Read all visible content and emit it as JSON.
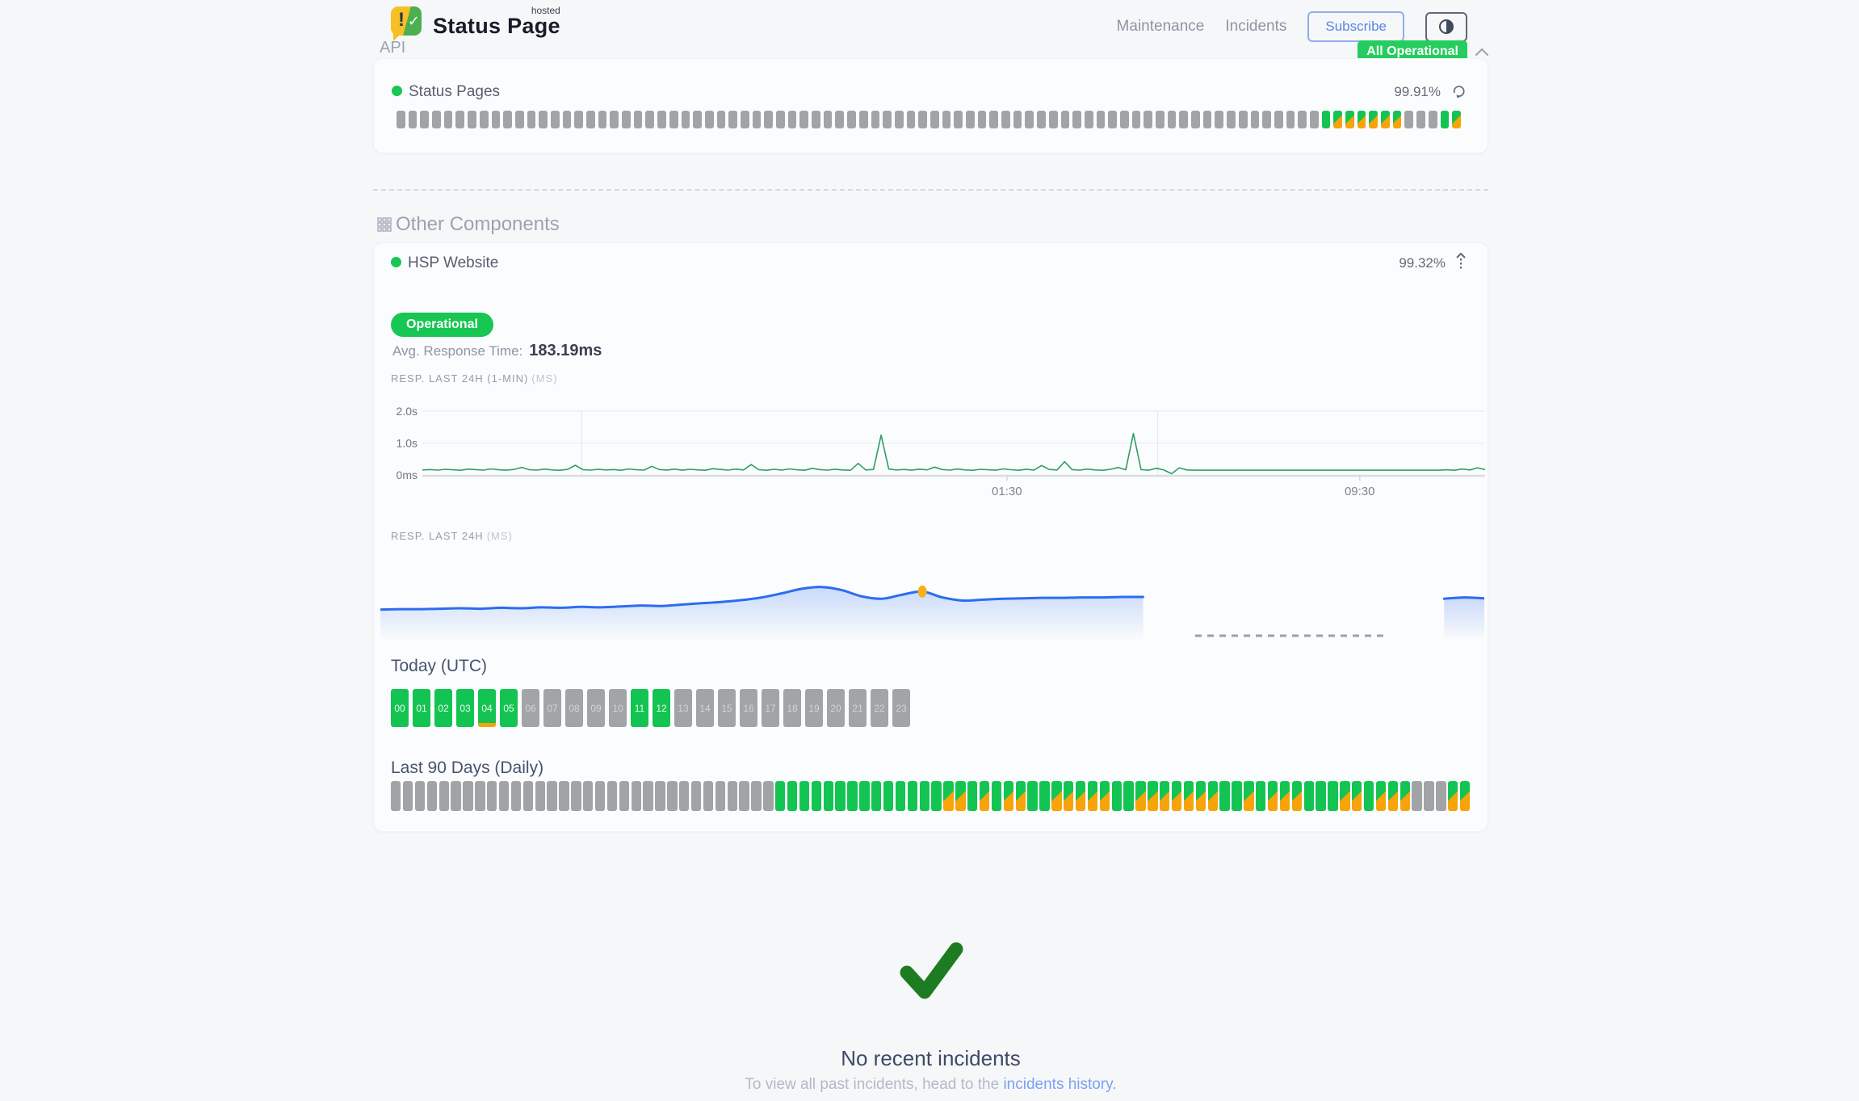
{
  "header": {
    "brand": {
      "title": "Status Page",
      "superscript": "hosted"
    },
    "nav": [
      "Maintenance",
      "Incidents"
    ],
    "subscribe_label": "Subscribe"
  },
  "api_section": {
    "title": "API",
    "status_badge": "All Operational",
    "component": {
      "name": "Status Pages",
      "uptime": "99.91%"
    },
    "uptime_bars_rle": [
      {
        "c": "gray",
        "n": 78
      },
      {
        "c": "green",
        "n": 1
      },
      {
        "c": "split",
        "n": 6
      },
      {
        "c": "gray",
        "n": 3
      },
      {
        "c": "green",
        "n": 1
      },
      {
        "c": "split",
        "n": 1
      }
    ]
  },
  "other_section": {
    "title": "Other Components",
    "component": {
      "name": "HSP Website",
      "uptime": "99.32%",
      "status": "Operational",
      "avg_label": "Avg. Response Time:",
      "avg_value": "183.19ms",
      "chart1_label": "RESP. LAST 24H (1-MIN)",
      "chart1_unit": "(MS)",
      "chart2_label": "RESP. LAST 24H",
      "chart2_unit": "(MS)",
      "today_title": "Today (UTC)",
      "hours": [
        {
          "label": "00",
          "state": "up"
        },
        {
          "label": "01",
          "state": "up"
        },
        {
          "label": "02",
          "state": "up"
        },
        {
          "label": "03",
          "state": "up"
        },
        {
          "label": "04",
          "state": "up",
          "partial": true
        },
        {
          "label": "05",
          "state": "up"
        },
        {
          "label": "06",
          "state": "empty"
        },
        {
          "label": "07",
          "state": "empty"
        },
        {
          "label": "08",
          "state": "empty"
        },
        {
          "label": "09",
          "state": "empty"
        },
        {
          "label": "10",
          "state": "empty"
        },
        {
          "label": "11",
          "state": "up"
        },
        {
          "label": "12",
          "state": "up"
        },
        {
          "label": "13",
          "state": "empty"
        },
        {
          "label": "14",
          "state": "empty"
        },
        {
          "label": "15",
          "state": "empty"
        },
        {
          "label": "16",
          "state": "empty"
        },
        {
          "label": "17",
          "state": "empty"
        },
        {
          "label": "18",
          "state": "empty"
        },
        {
          "label": "19",
          "state": "empty"
        },
        {
          "label": "20",
          "state": "empty"
        },
        {
          "label": "21",
          "state": "empty"
        },
        {
          "label": "22",
          "state": "empty"
        },
        {
          "label": "23",
          "state": "empty"
        }
      ],
      "last90_title": "Last 90 Days (Daily)",
      "daily_blocks_rle": [
        {
          "c": "gray",
          "n": 32
        },
        {
          "c": "green",
          "n": 14
        },
        {
          "c": "split",
          "n": 2
        },
        {
          "c": "green",
          "n": 1
        },
        {
          "c": "split",
          "n": 1
        },
        {
          "c": "green",
          "n": 1
        },
        {
          "c": "split",
          "n": 2
        },
        {
          "c": "green",
          "n": 2
        },
        {
          "c": "split",
          "n": 5
        },
        {
          "c": "green",
          "n": 2
        },
        {
          "c": "split",
          "n": 7
        },
        {
          "c": "green",
          "n": 2
        },
        {
          "c": "split",
          "n": 1
        },
        {
          "c": "green",
          "n": 1
        },
        {
          "c": "split",
          "n": 3
        },
        {
          "c": "green",
          "n": 3
        },
        {
          "c": "split",
          "n": 2
        },
        {
          "c": "green",
          "n": 1
        },
        {
          "c": "split",
          "n": 3
        },
        {
          "c": "gray",
          "n": 3
        },
        {
          "c": "split",
          "n": 2
        }
      ]
    }
  },
  "chart_data": [
    {
      "id": "resp_1min",
      "type": "line",
      "title": "RESP. LAST 24H (1-MIN)",
      "unit": "MS",
      "line_color": "#2f9e62",
      "ylim_ms": [
        0,
        2000
      ],
      "y_ticks": [
        {
          "label": "2.0s",
          "value": 2000
        },
        {
          "label": "1.0s",
          "value": 1000
        },
        {
          "label": "0ms",
          "value": 0
        }
      ],
      "x_ticks": [
        {
          "label": "01:30",
          "t": 0.55
        },
        {
          "label": "09:30",
          "t": 0.882
        }
      ],
      "v_gridlines_t": [
        0.15,
        0.692
      ],
      "values_ms": [
        158,
        170,
        151,
        176,
        162,
        148,
        185,
        168,
        153,
        190,
        161,
        149,
        175,
        238,
        164,
        152,
        186,
        157,
        147,
        174,
        305,
        167,
        151,
        181,
        158,
        169,
        148,
        191,
        163,
        152,
        272,
        169,
        155,
        182,
        149,
        176,
        160,
        146,
        198,
        171,
        153,
        185,
        157,
        326,
        164,
        148,
        178,
        155,
        189,
        161,
        147,
        207,
        167,
        152,
        181,
        157,
        146,
        362,
        158,
        172,
        1248,
        188,
        156,
        171,
        149,
        183,
        159,
        246,
        170,
        152,
        187,
        156,
        146,
        177,
        162,
        150,
        191,
        165,
        148,
        180,
        154,
        296,
        172,
        157,
        414,
        167,
        151,
        185,
        158,
        146,
        176,
        236,
        161,
        1302,
        168,
        150,
        210,
        155,
        38,
        225,
        158,
        150,
        150,
        150,
        150,
        150,
        150,
        150,
        150,
        150,
        150,
        150,
        150,
        150,
        150,
        150,
        150,
        150,
        150,
        150,
        150,
        150,
        150,
        150,
        150,
        150,
        150,
        150,
        150,
        150,
        150,
        150,
        150,
        150,
        163,
        147,
        188,
        157,
        225,
        170
      ]
    },
    {
      "id": "resp_24h",
      "type": "area",
      "title": "RESP. LAST 24H",
      "unit": "MS",
      "line_color": "#2b6df0",
      "fill_color": "#2b6df0",
      "marker_index": 27,
      "marker_color": "#f6b21b",
      "gap_dash": {
        "x1_t": 0.738,
        "x2_t": 0.909,
        "color": "#9aa1ac"
      },
      "values_ms": [
        172,
        173,
        173,
        174,
        175,
        174,
        176,
        175,
        177,
        176,
        178,
        177,
        179,
        181,
        180,
        183,
        186,
        189,
        193,
        199,
        208,
        218,
        222,
        215,
        201,
        196,
        205,
        212,
        199,
        192,
        194,
        196,
        197,
        198,
        198,
        199,
        199,
        200,
        200,
        null,
        null,
        null,
        null,
        null,
        null,
        null,
        null,
        null,
        null,
        null,
        null,
        null,
        null,
        196,
        199,
        197
      ]
    }
  ],
  "footer": {
    "title": "No recent incidents",
    "text_prefix": "To view all past incidents, head to the ",
    "link_label": "incidents history."
  }
}
